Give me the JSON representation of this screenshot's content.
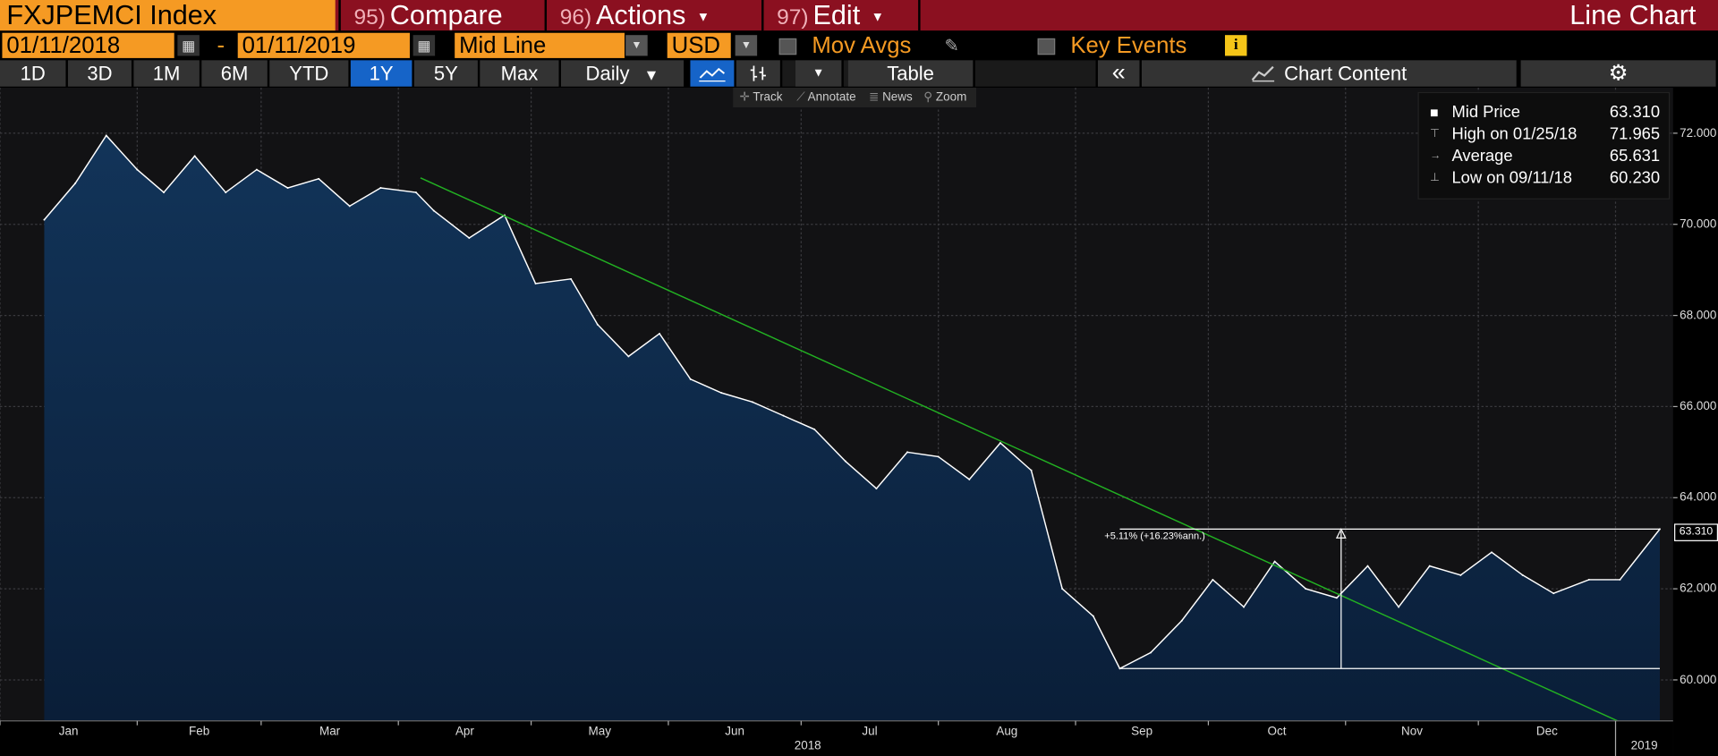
{
  "header": {
    "ticker": "FXJPEMCI Index",
    "compare_num": "95)",
    "compare_label": "Compare",
    "actions_num": "96)",
    "actions_label": "Actions",
    "edit_num": "97)",
    "edit_label": "Edit",
    "view_title": "Line Chart"
  },
  "controls": {
    "start_date": "01/11/2018",
    "range_dash": "-",
    "end_date": "01/11/2019",
    "line_type": "Mid Line",
    "currency": "USD",
    "mov_avgs_label": "Mov Avgs",
    "key_events_label": "Key Events"
  },
  "periods": [
    {
      "label": "1D",
      "active": false
    },
    {
      "label": "3D",
      "active": false
    },
    {
      "label": "1M",
      "active": false
    },
    {
      "label": "6M",
      "active": false
    },
    {
      "label": "YTD",
      "active": false
    },
    {
      "label": "1Y",
      "active": true
    },
    {
      "label": "5Y",
      "active": false
    },
    {
      "label": "Max",
      "active": false
    }
  ],
  "toolbar": {
    "frequency": "Daily",
    "table_label": "Table",
    "collapse_glyph": "«",
    "chart_content_label": "Chart Content",
    "mini_tools": [
      "Track",
      "Annotate",
      "News",
      "Zoom"
    ]
  },
  "legend": {
    "rows": [
      {
        "label": "Mid Price",
        "value": "63.310"
      },
      {
        "label": "High on 01/25/18",
        "value": "71.965"
      },
      {
        "label": "Average",
        "value": "65.631"
      },
      {
        "label": "Low on 09/11/18",
        "value": "60.230"
      }
    ]
  },
  "annotation": {
    "change_label": "+5.11% (+16.23%ann.)",
    "last_value": "63.310"
  },
  "colors": {
    "orange": "#f59a23",
    "header_red": "#8b1020",
    "active_blue": "#1664c8",
    "trend_green": "#22b022",
    "area_fill": "#0f2a4a",
    "line": "#ffffff"
  },
  "chart_data": {
    "type": "area",
    "y_ticks": [
      "72.000",
      "70.000",
      "68.000",
      "66.000",
      "64.000",
      "62.000",
      "60.000"
    ],
    "x_months": [
      "Jan",
      "Feb",
      "Mar",
      "Apr",
      "May",
      "Jun",
      "Jul",
      "Aug",
      "Sep",
      "Oct",
      "Nov",
      "Dec"
    ],
    "x_year_labels": [
      "2018",
      "2019"
    ],
    "ylim": [
      59.1,
      73.0
    ],
    "grid": true,
    "series": [
      {
        "name": "Mid Price",
        "x": [
          "2018-01-11",
          "2018-01-18",
          "2018-01-25",
          "2018-02-01",
          "2018-02-07",
          "2018-02-14",
          "2018-02-21",
          "2018-02-28",
          "2018-03-07",
          "2018-03-14",
          "2018-03-21",
          "2018-03-28",
          "2018-04-05",
          "2018-04-09",
          "2018-04-17",
          "2018-04-25",
          "2018-05-02",
          "2018-05-10",
          "2018-05-16",
          "2018-05-23",
          "2018-05-30",
          "2018-06-06",
          "2018-06-13",
          "2018-06-20",
          "2018-06-27",
          "2018-07-04",
          "2018-07-11",
          "2018-07-18",
          "2018-07-25",
          "2018-08-01",
          "2018-08-08",
          "2018-08-15",
          "2018-08-22",
          "2018-08-29",
          "2018-09-05",
          "2018-09-11",
          "2018-09-18",
          "2018-09-25",
          "2018-10-02",
          "2018-10-09",
          "2018-10-16",
          "2018-10-23",
          "2018-10-30",
          "2018-11-06",
          "2018-11-13",
          "2018-11-20",
          "2018-11-27",
          "2018-12-04",
          "2018-12-11",
          "2018-12-18",
          "2018-12-26",
          "2019-01-02",
          "2019-01-11"
        ],
        "y": [
          70.1,
          70.9,
          71.95,
          71.2,
          70.7,
          71.5,
          70.7,
          71.2,
          70.8,
          71.0,
          70.4,
          70.8,
          70.7,
          70.3,
          69.7,
          70.2,
          68.7,
          68.8,
          67.8,
          67.1,
          67.6,
          66.6,
          66.3,
          66.1,
          65.8,
          65.5,
          64.8,
          64.2,
          65.0,
          64.9,
          64.4,
          65.2,
          64.6,
          62.0,
          61.4,
          60.25,
          60.6,
          61.3,
          62.2,
          61.6,
          62.6,
          62.0,
          61.8,
          62.5,
          61.6,
          62.5,
          62.3,
          62.8,
          62.3,
          61.9,
          62.2,
          62.2,
          63.31
        ]
      },
      {
        "name": "Trend",
        "x": [
          "2018-04-06",
          "2019-01-06"
        ],
        "y": [
          71.02,
          58.9
        ]
      }
    ]
  }
}
